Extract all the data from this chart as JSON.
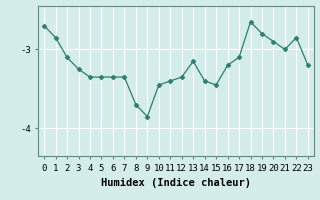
{
  "x": [
    0,
    1,
    2,
    3,
    4,
    5,
    6,
    7,
    8,
    9,
    10,
    11,
    12,
    13,
    14,
    15,
    16,
    17,
    18,
    19,
    20,
    21,
    22,
    23
  ],
  "y": [
    -2.7,
    -2.85,
    -3.1,
    -3.25,
    -3.35,
    -3.35,
    -3.35,
    -3.35,
    -3.7,
    -3.85,
    -3.45,
    -3.4,
    -3.35,
    -3.15,
    -3.4,
    -3.45,
    -3.2,
    -3.1,
    -2.65,
    -2.8,
    -2.9,
    -3.0,
    -2.85,
    -3.2
  ],
  "line_color": "#2e7d6e",
  "marker": "D",
  "marker_size": 2.5,
  "background_color": "#d4edea",
  "grid_color": "#ffffff",
  "xlabel": "Humidex (Indice chaleur)",
  "ylim": [
    -4.35,
    -2.45
  ],
  "xlim": [
    -0.5,
    23.5
  ],
  "yticks": [
    -4,
    -3
  ],
  "xticks": [
    0,
    1,
    2,
    3,
    4,
    5,
    6,
    7,
    8,
    9,
    10,
    11,
    12,
    13,
    14,
    15,
    16,
    17,
    18,
    19,
    20,
    21,
    22,
    23
  ],
  "label_fontsize": 7.5,
  "tick_fontsize": 6.5
}
